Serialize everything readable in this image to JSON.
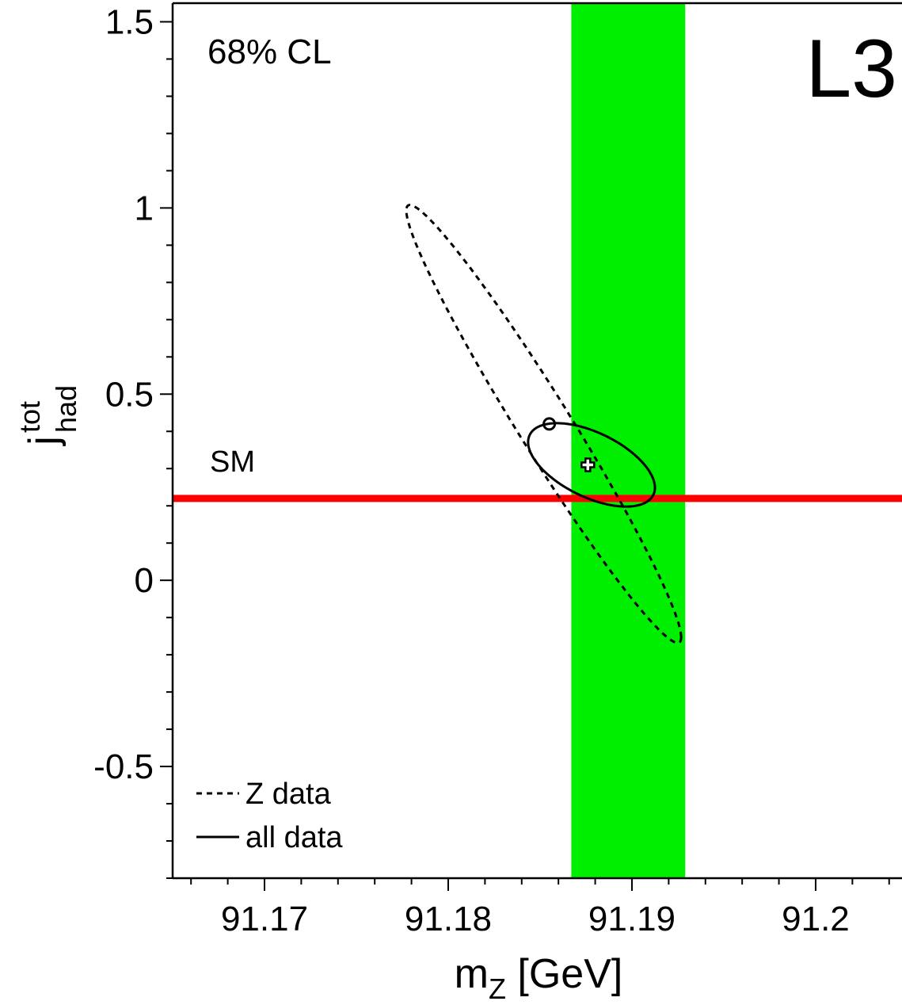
{
  "chart_data": {
    "type": "contour",
    "experiment_label": "L3",
    "cl_label": "68% CL",
    "xlabel": {
      "main": "m",
      "sub": "Z",
      "unit": " [GeV]"
    },
    "ylabel": {
      "main": "j",
      "sub": "had",
      "sup": "tot"
    },
    "xlim": [
      91.165,
      91.2047
    ],
    "ylim": [
      -0.8,
      1.55
    ],
    "x_ticks": [
      {
        "value": 91.17,
        "label": "91.17"
      },
      {
        "value": 91.18,
        "label": "91.18"
      },
      {
        "value": 91.19,
        "label": "91.19"
      },
      {
        "value": 91.2,
        "label": "91.2"
      }
    ],
    "y_ticks": [
      {
        "value": -0.5,
        "label": "-0.5"
      },
      {
        "value": 0,
        "label": "0"
      },
      {
        "value": 0.5,
        "label": "0.5"
      },
      {
        "value": 1,
        "label": "1"
      },
      {
        "value": 1.5,
        "label": "1.5"
      }
    ],
    "mz_band": {
      "min": 91.1867,
      "max": 91.1929,
      "color": "#00ee00"
    },
    "sm_line": {
      "label": "SM",
      "value": 0.22,
      "color": "#ff0000"
    },
    "legend_position": "bottom-left",
    "series": [
      {
        "name": "Z data",
        "style": "dashed",
        "color": "#000000",
        "ellipse": {
          "cx": 91.1852,
          "cy": 0.42,
          "sx": 0.00748,
          "sy": 0.588,
          "rho": -0.974
        },
        "marker": {
          "type": "circle",
          "x": 91.1855,
          "y": 0.42
        }
      },
      {
        "name": "all data",
        "style": "solid",
        "color": "#000000",
        "ellipse": {
          "cx": 91.1878,
          "cy": 0.31,
          "sx": 0.00345,
          "sy": 0.112,
          "rho": -0.546
        },
        "marker": {
          "type": "cross",
          "x": 91.1876,
          "y": 0.31
        }
      }
    ]
  }
}
